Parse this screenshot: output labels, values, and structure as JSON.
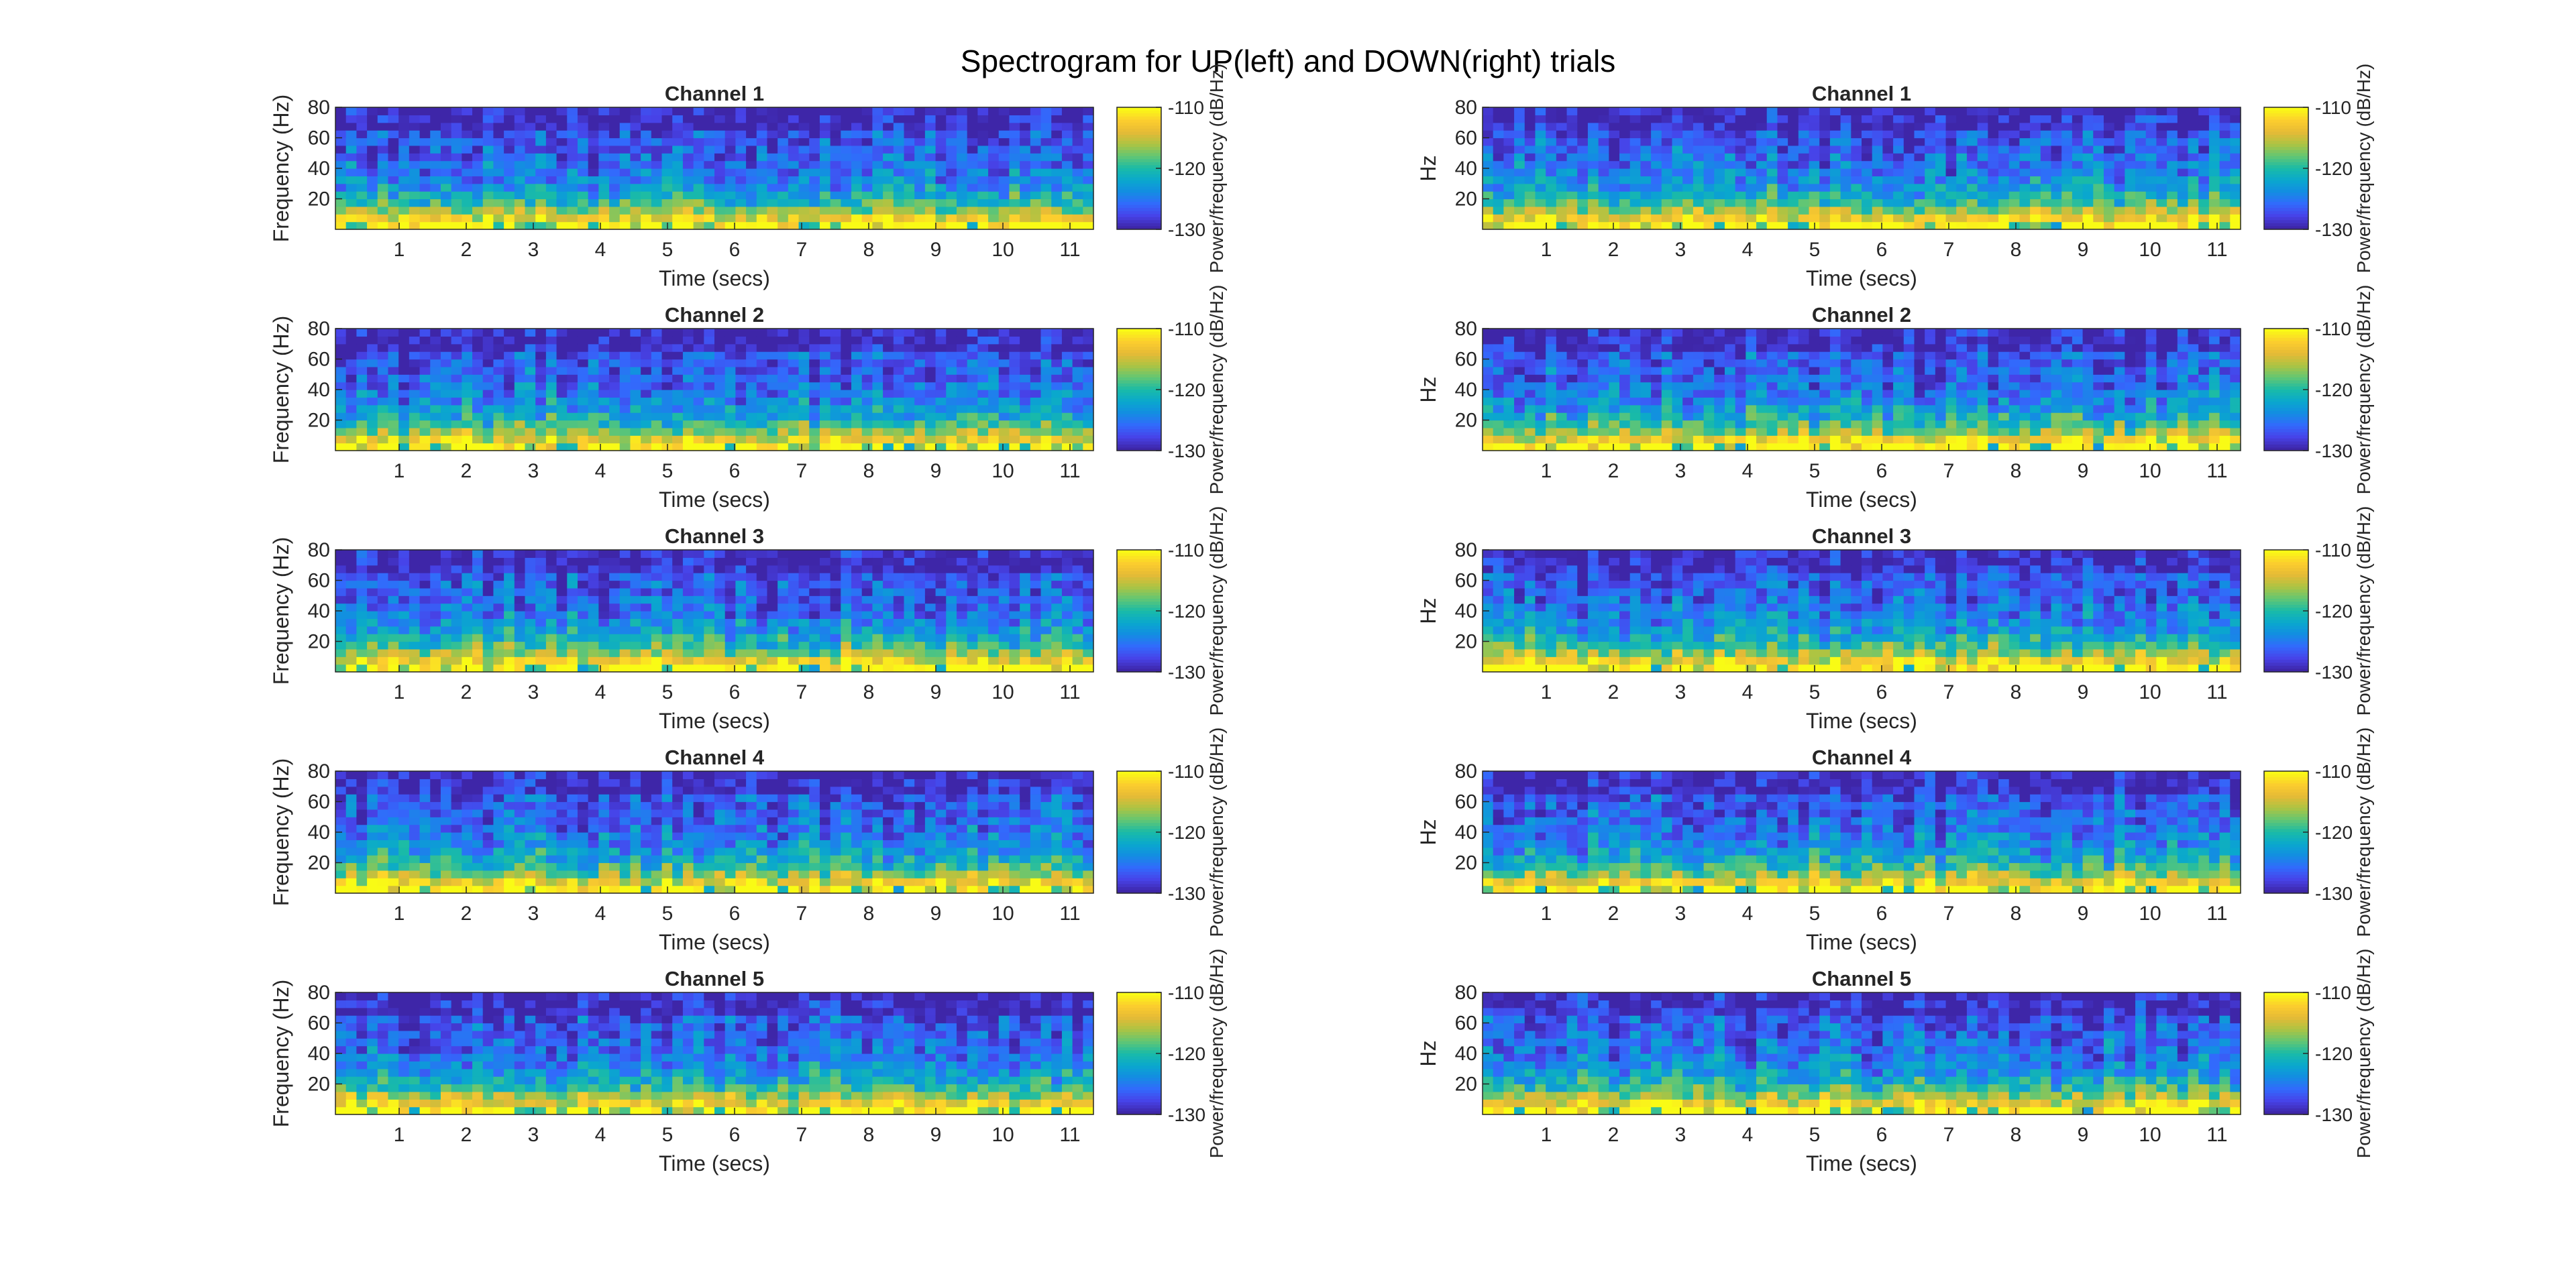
{
  "figure": {
    "title": "Spectrogram for UP(left) and DOWN(right) trials"
  },
  "chart_data": [
    {
      "type": "heatmap",
      "panel": "UP",
      "title": "Channel 1",
      "xlabel": "Time (secs)",
      "ylabel": "Frequency (Hz)",
      "colorbar_label": "Power/frequency (dB/Hz)",
      "xticks": [
        1,
        2,
        3,
        4,
        5,
        6,
        7,
        8,
        9,
        10,
        11
      ],
      "yticks": [
        20,
        40,
        60,
        80
      ],
      "xlim": [
        0.05,
        11.35
      ],
      "ylim": [
        0,
        80
      ],
      "clim": [
        -130,
        -110
      ],
      "cticks": [
        -110,
        -120,
        -130
      ],
      "colormap": "parula"
    },
    {
      "type": "heatmap",
      "panel": "UP",
      "title": "Channel 2",
      "xlabel": "Time (secs)",
      "ylabel": "Frequency (Hz)",
      "colorbar_label": "Power/frequency (dB/Hz)",
      "xticks": [
        1,
        2,
        3,
        4,
        5,
        6,
        7,
        8,
        9,
        10,
        11
      ],
      "yticks": [
        20,
        40,
        60,
        80
      ],
      "xlim": [
        0.05,
        11.35
      ],
      "ylim": [
        0,
        80
      ],
      "clim": [
        -130,
        -110
      ],
      "cticks": [
        -110,
        -120,
        -130
      ],
      "colormap": "parula"
    },
    {
      "type": "heatmap",
      "panel": "UP",
      "title": "Channel 3",
      "xlabel": "Time (secs)",
      "ylabel": "Frequency (Hz)",
      "colorbar_label": "Power/frequency (dB/Hz)",
      "xticks": [
        1,
        2,
        3,
        4,
        5,
        6,
        7,
        8,
        9,
        10,
        11
      ],
      "yticks": [
        20,
        40,
        60,
        80
      ],
      "xlim": [
        0.05,
        11.35
      ],
      "ylim": [
        0,
        80
      ],
      "clim": [
        -130,
        -110
      ],
      "cticks": [
        -110,
        -120,
        -130
      ],
      "colormap": "parula"
    },
    {
      "type": "heatmap",
      "panel": "UP",
      "title": "Channel 4",
      "xlabel": "Time (secs)",
      "ylabel": "Frequency (Hz)",
      "colorbar_label": "Power/frequency (dB/Hz)",
      "xticks": [
        1,
        2,
        3,
        4,
        5,
        6,
        7,
        8,
        9,
        10,
        11
      ],
      "yticks": [
        20,
        40,
        60,
        80
      ],
      "xlim": [
        0.05,
        11.35
      ],
      "ylim": [
        0,
        80
      ],
      "clim": [
        -130,
        -110
      ],
      "cticks": [
        -110,
        -120,
        -130
      ],
      "colormap": "parula"
    },
    {
      "type": "heatmap",
      "panel": "UP",
      "title": "Channel 5",
      "xlabel": "Time (secs)",
      "ylabel": "Frequency (Hz)",
      "colorbar_label": "Power/frequency (dB/Hz)",
      "xticks": [
        1,
        2,
        3,
        4,
        5,
        6,
        7,
        8,
        9,
        10,
        11
      ],
      "yticks": [
        20,
        40,
        60,
        80
      ],
      "xlim": [
        0.05,
        11.35
      ],
      "ylim": [
        0,
        80
      ],
      "clim": [
        -130,
        -110
      ],
      "cticks": [
        -110,
        -120,
        -130
      ],
      "colormap": "parula"
    },
    {
      "type": "heatmap",
      "panel": "DOWN",
      "title": "Channel 1",
      "xlabel": "Time (secs)",
      "ylabel": "Hz",
      "colorbar_label": "Power/frequency (dB/Hz)",
      "xticks": [
        1,
        2,
        3,
        4,
        5,
        6,
        7,
        8,
        9,
        10,
        11
      ],
      "yticks": [
        20,
        40,
        60,
        80
      ],
      "xlim": [
        0.05,
        11.35
      ],
      "ylim": [
        0,
        80
      ],
      "clim": [
        -130,
        -110
      ],
      "cticks": [
        -110,
        -120,
        -130
      ],
      "colormap": "parula"
    },
    {
      "type": "heatmap",
      "panel": "DOWN",
      "title": "Channel 2",
      "xlabel": "Time (secs)",
      "ylabel": "Hz",
      "colorbar_label": "Power/frequency (dB/Hz)",
      "xticks": [
        1,
        2,
        3,
        4,
        5,
        6,
        7,
        8,
        9,
        10,
        11
      ],
      "yticks": [
        20,
        40,
        60,
        80
      ],
      "xlim": [
        0.05,
        11.35
      ],
      "ylim": [
        0,
        80
      ],
      "clim": [
        -130,
        -110
      ],
      "cticks": [
        -110,
        -120,
        -130
      ],
      "colormap": "parula"
    },
    {
      "type": "heatmap",
      "panel": "DOWN",
      "title": "Channel 3",
      "xlabel": "Time (secs)",
      "ylabel": "Hz",
      "colorbar_label": "Power/frequency (dB/Hz)",
      "xticks": [
        1,
        2,
        3,
        4,
        5,
        6,
        7,
        8,
        9,
        10,
        11
      ],
      "yticks": [
        20,
        40,
        60,
        80
      ],
      "xlim": [
        0.05,
        11.35
      ],
      "ylim": [
        0,
        80
      ],
      "clim": [
        -130,
        -110
      ],
      "cticks": [
        -110,
        -120,
        -130
      ],
      "colormap": "parula"
    },
    {
      "type": "heatmap",
      "panel": "DOWN",
      "title": "Channel 4",
      "xlabel": "Time (secs)",
      "ylabel": "Hz",
      "colorbar_label": "Power/frequency (dB/Hz)",
      "xticks": [
        1,
        2,
        3,
        4,
        5,
        6,
        7,
        8,
        9,
        10,
        11
      ],
      "yticks": [
        20,
        40,
        60,
        80
      ],
      "xlim": [
        0.05,
        11.35
      ],
      "ylim": [
        0,
        80
      ],
      "clim": [
        -130,
        -110
      ],
      "cticks": [
        -110,
        -120,
        -130
      ],
      "colormap": "parula"
    },
    {
      "type": "heatmap",
      "panel": "DOWN",
      "title": "Channel 5",
      "xlabel": "Time (secs)",
      "ylabel": "Hz",
      "colorbar_label": "Power/frequency (dB/Hz)",
      "xticks": [
        1,
        2,
        3,
        4,
        5,
        6,
        7,
        8,
        9,
        10,
        11
      ],
      "yticks": [
        20,
        40,
        60,
        80
      ],
      "xlim": [
        0.05,
        11.35
      ],
      "ylim": [
        0,
        80
      ],
      "clim": [
        -130,
        -110
      ],
      "cticks": [
        -110,
        -120,
        -130
      ],
      "colormap": "parula"
    }
  ]
}
